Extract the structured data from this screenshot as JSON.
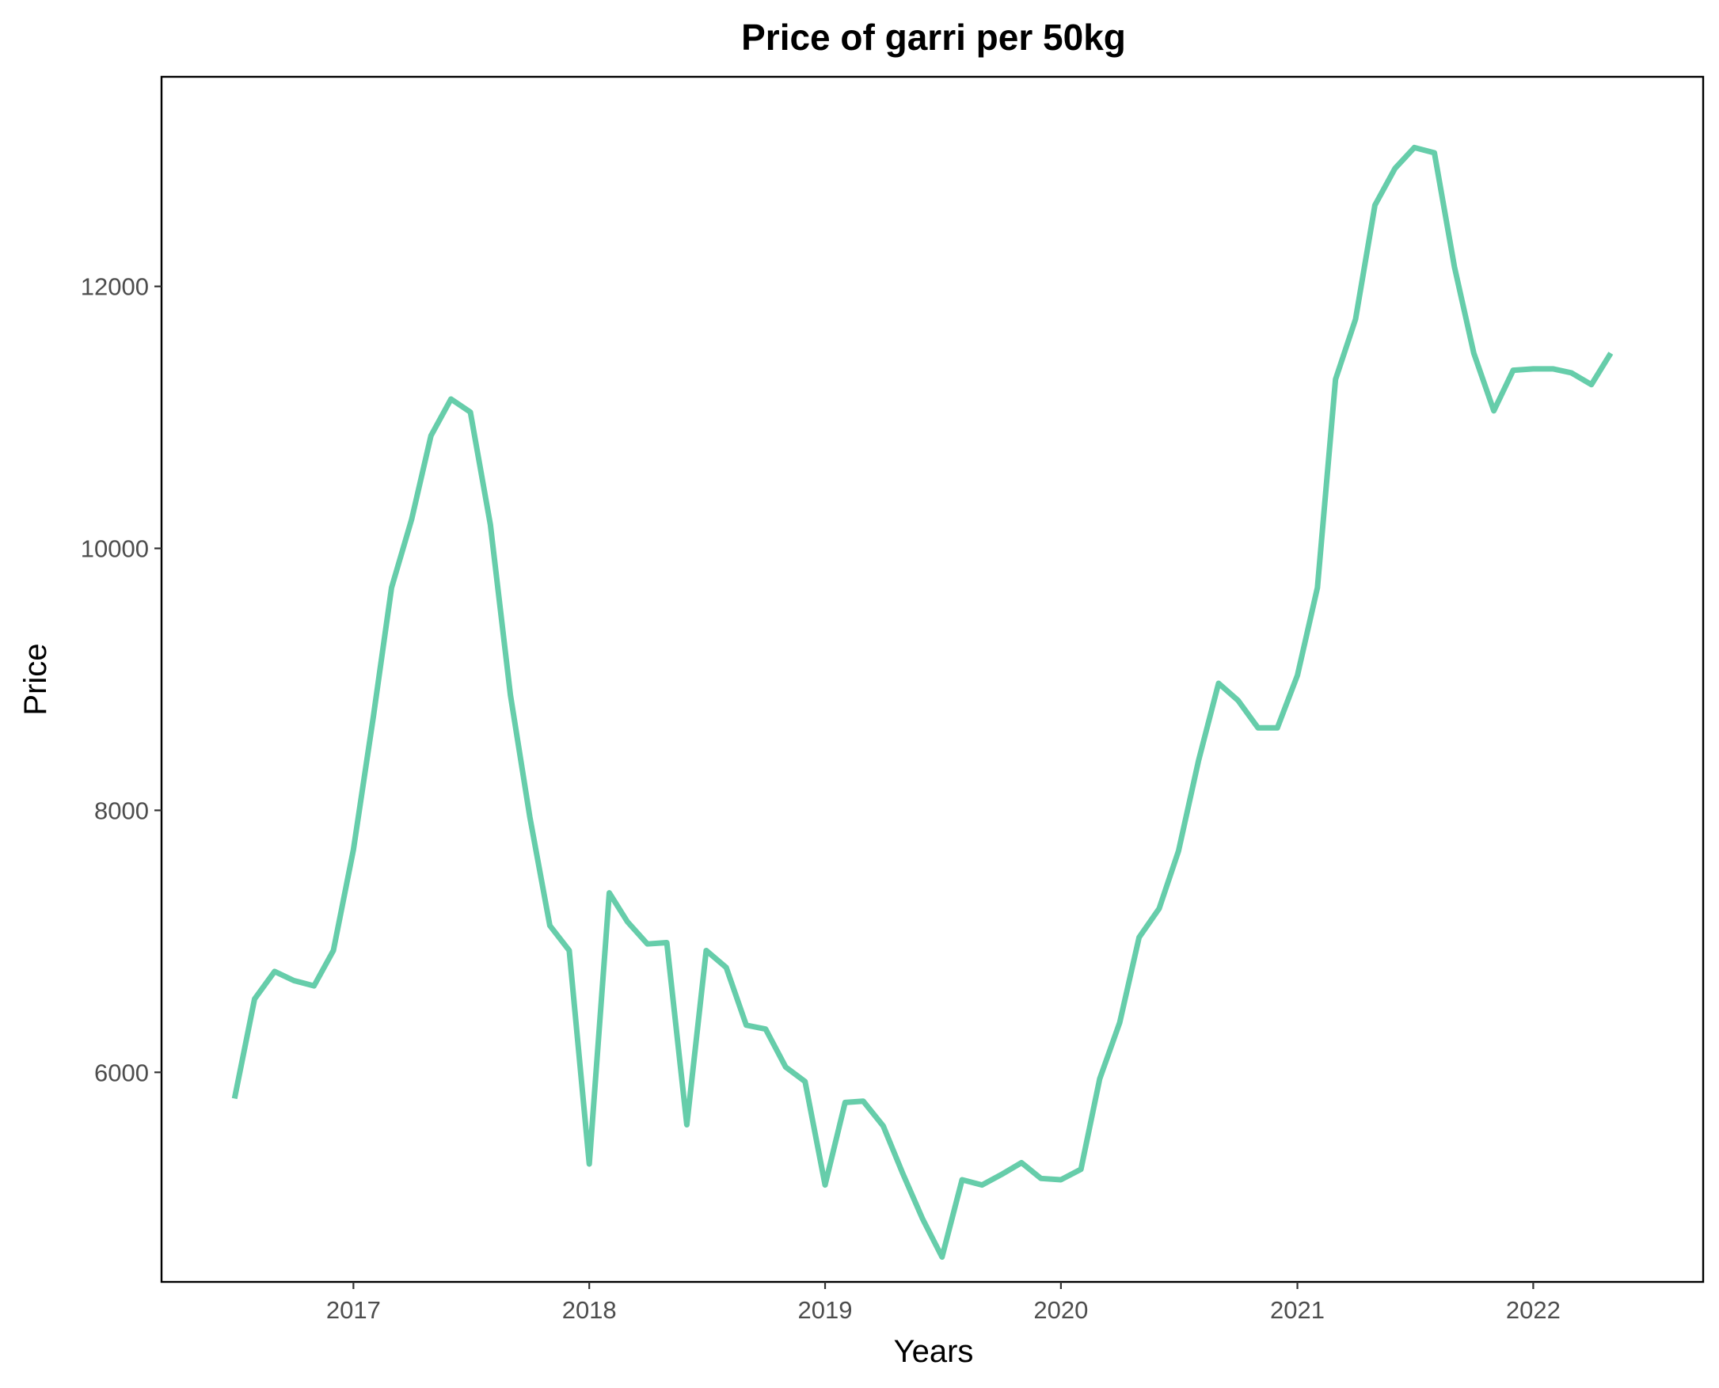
{
  "chart_data": {
    "type": "line",
    "title": "Price of garri per 50kg",
    "xlabel": "Years",
    "ylabel": "Price",
    "xlim": [
      "2016-03-10",
      "2022-09-21"
    ],
    "ylim": [
      4400,
      13600
    ],
    "x_ticks": [
      "2017",
      "2018",
      "2019",
      "2020",
      "2021",
      "2022"
    ],
    "y_ticks": [
      6000,
      8000,
      10000,
      12000
    ],
    "grid": false,
    "legend": "none",
    "line_color": "#66CDAA",
    "series": [
      {
        "x": [
          "2016-07-01",
          "2016-08-01",
          "2016-09-01",
          "2016-10-01",
          "2016-11-01",
          "2016-12-01",
          "2017-01-01",
          "2017-02-01",
          "2017-03-01",
          "2017-04-01",
          "2017-05-01",
          "2017-06-01",
          "2017-07-01",
          "2017-08-01",
          "2017-09-01",
          "2017-10-01",
          "2017-11-01",
          "2017-12-01",
          "2018-01-01",
          "2018-02-01",
          "2018-03-01",
          "2018-04-01",
          "2018-05-01",
          "2018-06-01",
          "2018-07-01",
          "2018-08-01",
          "2018-09-01",
          "2018-10-01",
          "2018-11-01",
          "2018-12-01",
          "2019-01-01",
          "2019-02-01",
          "2019-03-01",
          "2019-04-01",
          "2019-05-01",
          "2019-06-01",
          "2019-07-01",
          "2019-08-01",
          "2019-09-01",
          "2019-10-01",
          "2019-11-01",
          "2019-12-01",
          "2020-01-01",
          "2020-02-01",
          "2020-03-01",
          "2020-04-01",
          "2020-05-01",
          "2020-06-01",
          "2020-07-01",
          "2020-08-01",
          "2020-09-01",
          "2020-10-01",
          "2020-11-01",
          "2020-12-01",
          "2021-01-01",
          "2021-02-01",
          "2021-03-01",
          "2021-04-01",
          "2021-05-01",
          "2021-06-01",
          "2021-07-01",
          "2021-08-01",
          "2021-09-01",
          "2021-10-01",
          "2021-11-01",
          "2021-12-01",
          "2022-01-01",
          "2022-02-01",
          "2022-03-01",
          "2022-04-01",
          "2022-05-01"
        ],
        "y": [
          5800,
          6560,
          6770,
          6700,
          6660,
          6930,
          7700,
          8720,
          9700,
          10220,
          10860,
          11140,
          11040,
          10180,
          8880,
          7950,
          7120,
          6930,
          5300,
          7370,
          7150,
          6980,
          6990,
          5600,
          6930,
          6800,
          6360,
          6330,
          6040,
          5930,
          5140,
          5770,
          5780,
          5590,
          5230,
          4880,
          4590,
          5180,
          5140,
          5220,
          5310,
          5190,
          5180,
          5260,
          5950,
          6380,
          7030,
          7250,
          7690,
          8380,
          8970,
          8840,
          8630,
          8630,
          9030,
          9700,
          11290,
          11750,
          12620,
          12900,
          13060,
          13020,
          12150,
          11490,
          11050,
          11360,
          11370,
          11370,
          11340,
          11250,
          11490
        ]
      }
    ]
  }
}
